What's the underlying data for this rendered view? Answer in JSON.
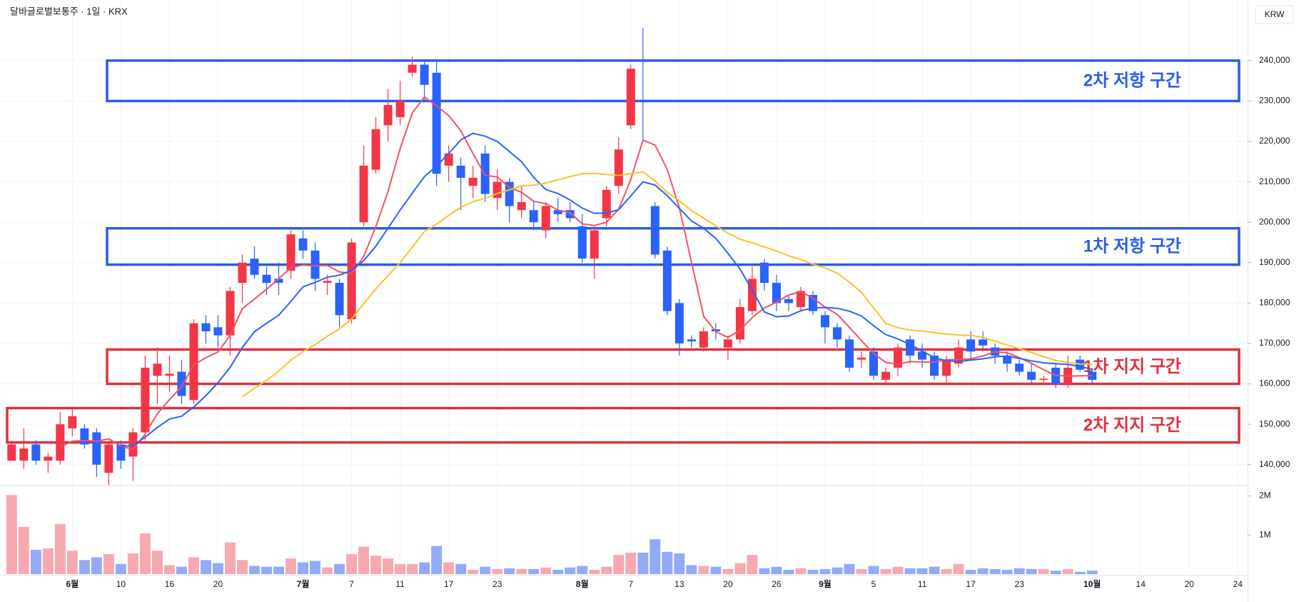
{
  "chart_data": {
    "type": "candlestick",
    "title": "달바글로벌보통주 · 1일 · KRX",
    "currency": "KRW",
    "categories": [
      null,
      null,
      null,
      null,
      null,
      "6월",
      null,
      null,
      null,
      "10",
      null,
      null,
      null,
      "16",
      null,
      null,
      null,
      "20",
      null,
      null,
      null,
      null,
      null,
      null,
      "7월",
      null,
      null,
      null,
      "7",
      null,
      null,
      null,
      "11",
      null,
      null,
      null,
      "17",
      null,
      null,
      null,
      "23",
      null,
      null,
      null,
      null,
      null,
      null,
      "8월",
      null,
      null,
      null,
      "7",
      null,
      null,
      null,
      "13",
      null,
      null,
      null,
      "20",
      null,
      null,
      null,
      "26",
      null,
      null,
      null,
      "9월",
      null,
      null,
      null,
      "5",
      null,
      null,
      null,
      "11",
      null,
      null,
      null,
      "17",
      null,
      null,
      null,
      "23",
      null,
      null,
      null,
      null,
      null,
      "10월",
      null,
      null,
      null,
      "14",
      null,
      null,
      null,
      "20",
      null,
      null,
      null,
      "24"
    ],
    "open": [
      141000,
      141000,
      145000,
      141000,
      141000,
      149000,
      149000,
      148000,
      138000,
      145000,
      142000,
      148000,
      162000,
      162000,
      163000,
      156000,
      175000,
      174000,
      172000,
      185000,
      191000,
      187000,
      186000,
      188000,
      196000,
      193000,
      185000,
      185000,
      176000,
      200000,
      213000,
      224000,
      226000,
      237000,
      239000,
      237000,
      214000,
      214000,
      209000,
      217000,
      206000,
      210000,
      203000,
      203000,
      198000,
      203000,
      203000,
      199000,
      191000,
      201000,
      209000,
      224000,
      240000,
      204000,
      193000,
      180000,
      171000,
      169000,
      173500,
      169000,
      171000,
      178000,
      190000,
      185000,
      181000,
      179000,
      182000,
      177000,
      174000,
      171000,
      166000,
      168000,
      161000,
      164000,
      171000,
      168000,
      167000,
      162000,
      165000,
      171000,
      171000,
      169000,
      167000,
      165000,
      163000,
      161000,
      164000,
      160000,
      166000,
      163000,
      null,
      null,
      null,
      null,
      null,
      null,
      null,
      null,
      null,
      null,
      null,
      null
    ],
    "high": [
      146000,
      149000,
      146000,
      143000,
      153000,
      154000,
      150000,
      149000,
      146000,
      146000,
      149000,
      167000,
      169000,
      167000,
      166000,
      176000,
      177000,
      177000,
      184000,
      192000,
      194000,
      189000,
      190000,
      198000,
      198000,
      195000,
      187000,
      186000,
      196000,
      219000,
      226000,
      233000,
      235000,
      241000,
      240000,
      240000,
      219000,
      216000,
      214000,
      219000,
      213000,
      211000,
      209000,
      205000,
      205000,
      206000,
      205000,
      202000,
      199000,
      209000,
      221000,
      239000,
      248000,
      205000,
      194000,
      181000,
      172000,
      174000,
      175000,
      172000,
      181000,
      189000,
      191000,
      187000,
      182000,
      184000,
      183000,
      178000,
      175000,
      172000,
      168000,
      169000,
      164000,
      170000,
      172000,
      170000,
      168000,
      167000,
      171000,
      173000,
      173000,
      170000,
      168000,
      166000,
      165000,
      162000,
      165000,
      167000,
      167000,
      164000,
      null,
      null,
      null,
      null,
      null,
      null,
      null,
      null,
      null,
      null,
      null,
      null
    ],
    "low": [
      141000,
      139000,
      140000,
      138000,
      140000,
      147000,
      144000,
      137000,
      134000,
      139000,
      136000,
      146000,
      155000,
      158000,
      155000,
      155000,
      170000,
      169000,
      167000,
      180000,
      186000,
      182000,
      182000,
      186000,
      191000,
      183000,
      182000,
      174000,
      175000,
      199000,
      212000,
      220000,
      224000,
      236000,
      230000,
      209000,
      210000,
      203000,
      206000,
      205000,
      203000,
      200000,
      201000,
      198000,
      196000,
      200000,
      200000,
      190000,
      186000,
      199000,
      207000,
      223000,
      220000,
      191000,
      177000,
      167000,
      169000,
      168000,
      171000,
      166000,
      170000,
      177000,
      183000,
      178000,
      178000,
      178000,
      177000,
      170000,
      169000,
      163000,
      164000,
      161000,
      160000,
      162000,
      165000,
      164000,
      161000,
      160000,
      164000,
      166000,
      168000,
      165000,
      163000,
      162000,
      160000,
      160000,
      159000,
      159000,
      163000,
      160000,
      null,
      null,
      null,
      null,
      null,
      null,
      null,
      null,
      null,
      null,
      null,
      null
    ],
    "close": [
      145000,
      144000,
      141000,
      142000,
      150000,
      152000,
      145000,
      140000,
      145000,
      141000,
      148000,
      164000,
      165000,
      162500,
      157000,
      175000,
      173000,
      172000,
      183000,
      190000,
      187000,
      185000,
      185000,
      197000,
      193000,
      186000,
      185500,
      177000,
      195000,
      214000,
      223000,
      229000,
      230000,
      239000,
      234000,
      212000,
      217000,
      211000,
      211000,
      207000,
      210000,
      204000,
      205000,
      200000,
      204000,
      202000,
      201000,
      191000,
      198000,
      208000,
      218000,
      238000,
      239700,
      192000,
      178000,
      170000,
      170500,
      173000,
      173000,
      171000,
      179000,
      186000,
      185000,
      180000,
      180000,
      183000,
      178000,
      174000,
      171000,
      164000,
      166500,
      162000,
      163000,
      169000,
      167000,
      166000,
      162000,
      166000,
      169000,
      168000,
      169500,
      167000,
      165000,
      163000,
      161000,
      161300,
      160000,
      164000,
      163500,
      161000,
      null,
      null,
      null,
      null,
      null,
      null,
      null,
      null,
      null,
      null,
      null,
      null
    ],
    "volume": [
      2020000,
      1210000,
      620000,
      660000,
      1280000,
      600000,
      360000,
      430000,
      510000,
      260000,
      530000,
      1040000,
      600000,
      230000,
      190000,
      430000,
      360000,
      280000,
      810000,
      360000,
      210000,
      190000,
      190000,
      400000,
      300000,
      340000,
      170000,
      260000,
      510000,
      700000,
      470000,
      400000,
      260000,
      260000,
      300000,
      720000,
      300000,
      260000,
      110000,
      190000,
      130000,
      150000,
      130000,
      130000,
      170000,
      110000,
      170000,
      210000,
      110000,
      190000,
      490000,
      550000,
      550000,
      890000,
      570000,
      530000,
      230000,
      210000,
      190000,
      130000,
      280000,
      490000,
      150000,
      190000,
      110000,
      150000,
      110000,
      130000,
      170000,
      260000,
      130000,
      210000,
      130000,
      190000,
      150000,
      150000,
      190000,
      130000,
      260000,
      110000,
      150000,
      130000,
      110000,
      150000,
      130000,
      130000,
      90000,
      130000,
      60000,
      90000,
      null,
      null,
      null,
      null,
      null,
      null,
      null,
      null,
      null,
      null,
      null,
      null
    ],
    "series": [
      {
        "color": "#ef5360",
        "values": [
          null,
          null,
          null,
          null,
          144400,
          145800,
          146000,
          145800,
          146400,
          144600,
          143800,
          147600,
          152600,
          156100,
          159300,
          164700,
          166500,
          167900,
          172000,
          178600,
          181000,
          183400,
          186000,
          188800,
          189400,
          189200,
          189300,
          187700,
          187300,
          191500,
          198900,
          207600,
          218200,
          227000,
          231000,
          228800,
          226400,
          222600,
          217000,
          211600,
          211200,
          208600,
          207400,
          205200,
          204600,
          203000,
          202400,
          199600,
          199200,
          200000,
          203200,
          210600,
          220300,
          219100,
          213100,
          203500,
          190000,
          176700,
          172900,
          171500,
          173300,
          176400,
          178800,
          180200,
          182000,
          182800,
          181200,
          179000,
          177200,
          174000,
          170700,
          167500,
          165300,
          164900,
          165500,
          165400,
          165400,
          166000,
          166000,
          166200,
          166900,
          167900,
          167700,
          166500,
          165100,
          163500,
          162100,
          161900,
          162000,
          162000,
          null,
          null,
          null,
          null,
          null,
          null,
          null,
          null,
          null,
          null,
          null,
          null
        ]
      },
      {
        "color": "#2962ff",
        "values": [
          null,
          null,
          null,
          null,
          null,
          null,
          null,
          null,
          null,
          144500,
          144800,
          146800,
          149200,
          151300,
          152000,
          154300,
          157100,
          160300,
          164100,
          169000,
          172900,
          175000,
          177000,
          180400,
          184000,
          185100,
          186400,
          186900,
          188100,
          190500,
          194100,
          198500,
          203000,
          207200,
          211300,
          213900,
          217000,
          220400,
          222000,
          221300,
          220000,
          217500,
          215000,
          211100,
          208100,
          207100,
          205500,
          203500,
          202200,
          202300,
          203100,
          206500,
          210000,
          209200,
          206600,
          203400,
          200300,
          198500,
          196000,
          192300,
          188400,
          183200,
          177800,
          176600,
          176800,
          178100,
          178800,
          178900,
          178700,
          178000,
          176800,
          174400,
          172200,
          171100,
          169800,
          168100,
          166500,
          165700,
          165500,
          165900,
          166200,
          166700,
          166900,
          166300,
          165700,
          165200,
          165000,
          164800,
          164300,
          163600,
          null,
          null,
          null,
          null,
          null,
          null,
          null,
          null,
          null,
          null,
          null,
          null
        ]
      },
      {
        "color": "#f7c325",
        "values": [
          null,
          null,
          null,
          null,
          null,
          null,
          null,
          null,
          null,
          null,
          null,
          null,
          null,
          null,
          null,
          null,
          null,
          null,
          null,
          156800,
          158900,
          160900,
          163100,
          165900,
          168000,
          169700,
          171800,
          173600,
          176100,
          179800,
          183500,
          186800,
          190000,
          193800,
          197700,
          199500,
          201700,
          203700,
          205100,
          205900,
          207100,
          208000,
          209000,
          209200,
          209700,
          210500,
          211300,
          212000,
          212100,
          211800,
          211600,
          212000,
          212500,
          210200,
          207400,
          205300,
          202900,
          201000,
          199100,
          197300,
          195800,
          194900,
          193900,
          192900,
          191700,
          190800,
          189600,
          188700,
          187400,
          185200,
          182600,
          178800,
          175000,
          173900,
          173300,
          173100,
          172700,
          172300,
          172100,
          172000,
          171500,
          170600,
          169600,
          168700,
          167800,
          166700,
          165800,
          165300,
          164900,
          164800,
          null,
          null,
          null,
          null,
          null,
          null,
          null,
          null,
          null,
          null,
          null,
          null
        ]
      }
    ],
    "up_color": "#f23645",
    "down_color": "#2962ff",
    "volume_up_color": "#f7a9b1",
    "volume_down_color": "#93abf7",
    "zones": [
      {
        "label": "2차 저항 구간",
        "low": 230000,
        "high": 240000,
        "color": "#2b5ce6"
      },
      {
        "label": "1차 저항 구간",
        "low": 189500,
        "high": 198500,
        "color": "#2b5ce6"
      },
      {
        "label": "1차 지지 구간",
        "low": 160000,
        "high": 168500,
        "color": "#e0303d"
      },
      {
        "label": "2차 지지 구간",
        "low": 145500,
        "high": 154000,
        "color": "#e0303d"
      }
    ],
    "ylim": [
      135000,
      255000
    ],
    "yticks": [
      {
        "value": 140000,
        "label": "140,000"
      },
      {
        "value": 150000,
        "label": "150,000"
      },
      {
        "value": 160000,
        "label": "160,000"
      },
      {
        "value": 170000,
        "label": "170,000"
      },
      {
        "value": 180000,
        "label": "180,000"
      },
      {
        "value": 190000,
        "label": "190,000"
      },
      {
        "value": 200000,
        "label": "200,000"
      },
      {
        "value": 210000,
        "label": "210,000"
      },
      {
        "value": 220000,
        "label": "220,000"
      },
      {
        "value": 230000,
        "label": "230,000"
      },
      {
        "value": 240000,
        "label": "240,000"
      }
    ],
    "y2lim": [
      0,
      2280000
    ],
    "y2ticks": [
      {
        "value": 1000000,
        "label": "1M"
      },
      {
        "value": 2000000,
        "label": "2M"
      }
    ],
    "grid": true
  }
}
